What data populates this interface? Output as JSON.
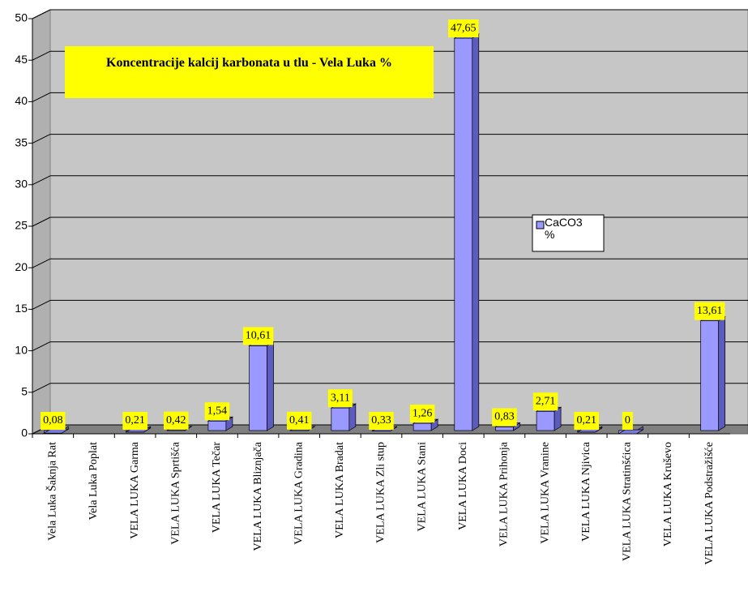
{
  "chart_data": {
    "type": "bar",
    "title": "Koncentracije kalcij karbonata u tlu - Vela Luka %",
    "categories": [
      "Vela Luka Šaknja Rat",
      "Vela Luka Poplat",
      "VELA LUKA Garma",
      "VELA LUKA Sprtišća",
      "VELA LUKA Tečar",
      "VELA LUKA Bliznjača",
      "VELA LUKA Gradina",
      "VELA LUKA Bradat",
      "VELA LUKA Zli stup",
      "VELA LUKA Stani",
      "VELA LUKA Doci",
      "VELA LUKA Prihonja",
      "VELA LUKA Vranine",
      "VELA LUKA Njivica",
      "VELA LUKA Stratinšćica",
      "VELA LUKA Kruševo",
      "VELA LUKA Podstražišće"
    ],
    "series": [
      {
        "name": "CaCO3 %",
        "color": "#9999ff",
        "values": [
          0.08,
          null,
          0.21,
          0.42,
          1.54,
          10.61,
          0.41,
          3.11,
          0.33,
          1.26,
          47.65,
          0.83,
          2.71,
          0.21,
          0,
          null,
          13.61
        ],
        "value_labels": [
          "0,08",
          null,
          "0,21",
          "0,42",
          "1,54",
          "10,61",
          "0,41",
          "3,11",
          "0,33",
          "1,26",
          "47,65",
          "0,83",
          "2,71",
          "0,21",
          "0",
          null,
          "13,61"
        ]
      }
    ],
    "ylim": [
      0,
      50
    ],
    "yticks": [
      0,
      5,
      10,
      15,
      20,
      25,
      30,
      35,
      40,
      45,
      50
    ],
    "grid": true,
    "legend": "right"
  }
}
